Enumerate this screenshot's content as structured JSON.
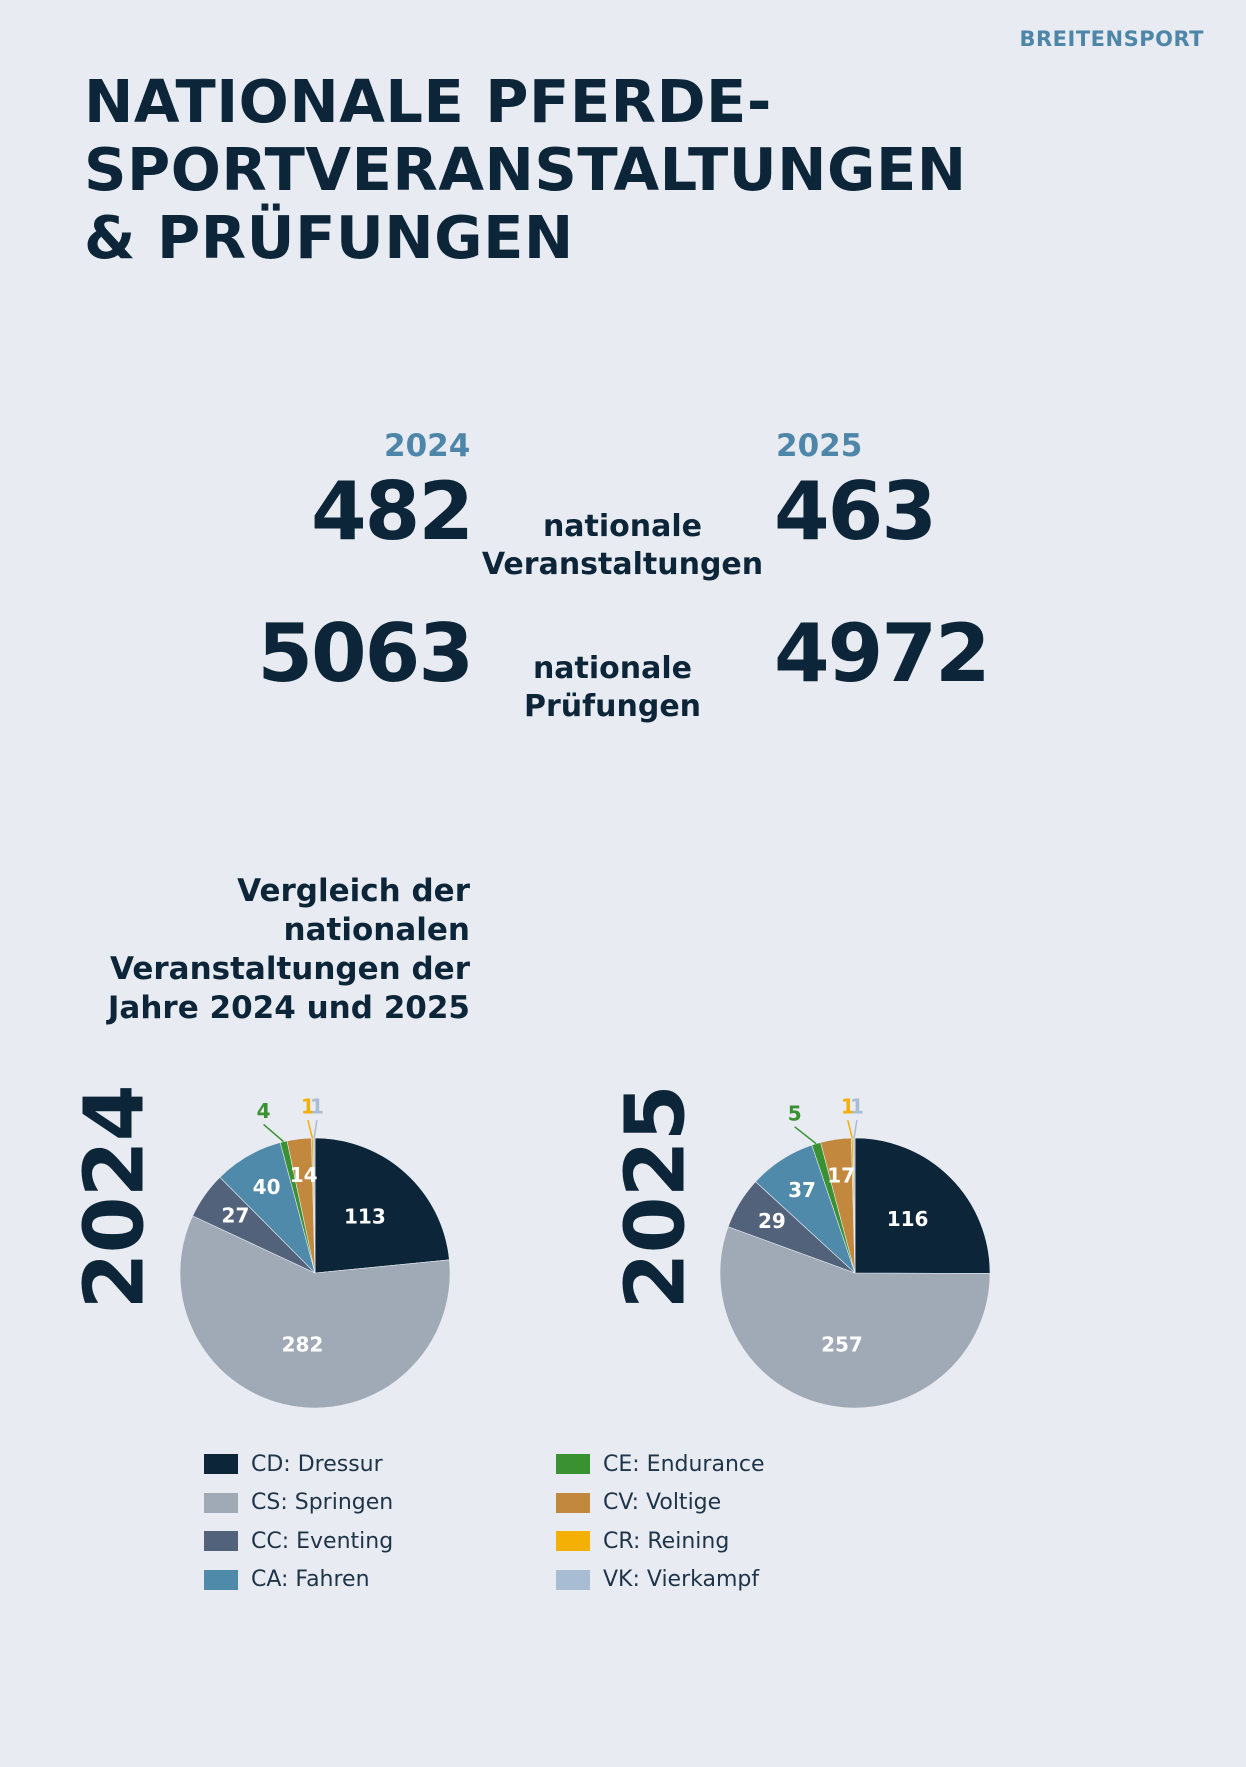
{
  "section_label": "BREITENSPORT",
  "headline": [
    "NATIONALE PFERDE-",
    "SPORTVERANSTALTUNGEN",
    "& PRÜFUNGEN"
  ],
  "stats": {
    "year_left": "2024",
    "year_right": "2025",
    "events": {
      "left": "482",
      "right": "463",
      "label_line1": "nationale",
      "label_line2": "Veranstaltungen"
    },
    "tests": {
      "left": "5063",
      "right": "4972",
      "label_line1": "nationale",
      "label_line2": "Prüfungen"
    }
  },
  "comparison_title": [
    "Vergleich der",
    "nationalen",
    "Veranstaltungen der",
    "Jahre 2024 und 2025"
  ],
  "colors": {
    "CD": "#0c2538",
    "CS": "#a0aab7",
    "CC": "#52627a",
    "CA": "#4f8aab",
    "CE": "#3a9132",
    "CV": "#c2883d",
    "CR": "#f5b006",
    "VK": "#a8bcd3"
  },
  "chart_data": [
    {
      "type": "pie",
      "title": "2024",
      "categories": [
        "CD: Dressur",
        "CS: Springen",
        "CC: Eventing",
        "CA: Fahren",
        "CE: Endurance",
        "CV: Voltige",
        "CR: Reining",
        "VK: Vierkampf"
      ],
      "keys": [
        "CD",
        "CS",
        "CC",
        "CA",
        "CE",
        "CV",
        "CR",
        "VK"
      ],
      "values": [
        113,
        282,
        27,
        40,
        4,
        14,
        1,
        1
      ]
    },
    {
      "type": "pie",
      "title": "2025",
      "categories": [
        "CD: Dressur",
        "CS: Springen",
        "CC: Eventing",
        "CA: Fahren",
        "CE: Endurance",
        "CV: Voltige",
        "CR: Reining",
        "VK: Vierkampf"
      ],
      "keys": [
        "CD",
        "CS",
        "CC",
        "CA",
        "CE",
        "CV",
        "CR",
        "VK"
      ],
      "values": [
        116,
        257,
        29,
        37,
        5,
        17,
        1,
        1
      ]
    }
  ],
  "legend": [
    {
      "key": "CD",
      "label": "CD: Dressur"
    },
    {
      "key": "CS",
      "label": "CS: Springen"
    },
    {
      "key": "CC",
      "label": "CC: Eventing"
    },
    {
      "key": "CA",
      "label": "CA: Fahren"
    },
    {
      "key": "CE",
      "label": "CE: Endurance"
    },
    {
      "key": "CV",
      "label": "CV: Voltige"
    },
    {
      "key": "CR",
      "label": "CR: Reining"
    },
    {
      "key": "VK",
      "label": "VK: Vierkampf"
    }
  ]
}
